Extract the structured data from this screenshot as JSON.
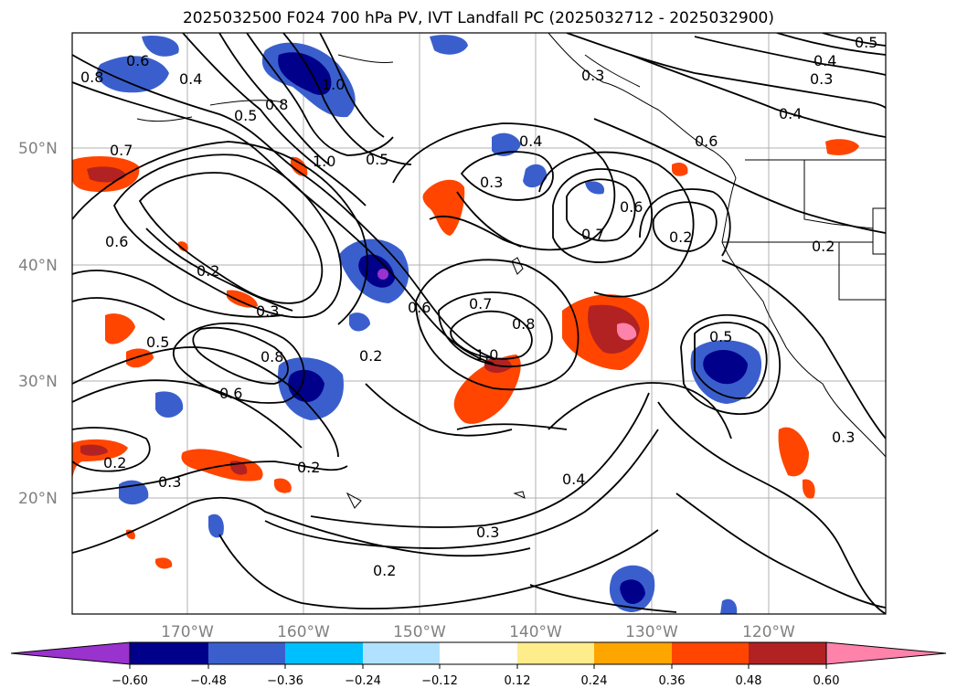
{
  "title": "2025032500 F024 700 hPa PV, IVT Landfall PC (2025032712 - 2025032900)",
  "lat_labels": [
    "50°N",
    "40°N",
    "30°N",
    "20°N"
  ],
  "lon_labels": [
    "170°W",
    "160°W",
    "150°W",
    "140°W",
    "130°W",
    "120°W"
  ],
  "colorbar": {
    "colors": [
      "#9a32cd",
      "#00008b",
      "#3a5fcd",
      "#00bfff",
      "#b0e2ff",
      "#ffffff",
      "#ffec8b",
      "#ffa500",
      "#ff4500",
      "#b22222",
      "#ff82ab"
    ],
    "tick_labels": [
      "−0.60",
      "−0.48",
      "−0.36",
      "−0.24",
      "−0.12",
      "0.12",
      "0.24",
      "0.36",
      "0.48",
      "0.60"
    ]
  },
  "contour_labels": [
    "0.8",
    "0.6",
    "0.4",
    "0.5",
    "0.8",
    "1.0",
    "0.7",
    "1.0",
    "0.5",
    "0.4",
    "0.3",
    "0.3",
    "0.5",
    "0.4",
    "0.3",
    "0.4",
    "0.6",
    "0.6",
    "0.7",
    "0.2",
    "0.2",
    "0.6",
    "0.2",
    "0.3",
    "0.5",
    "0.8",
    "0.6",
    "0.6",
    "0.2",
    "0.7",
    "0.8",
    "1.0",
    "0.5",
    "0.3",
    "0.2",
    "0.2",
    "0.3",
    "0.4",
    "0.3",
    "0.2"
  ]
}
